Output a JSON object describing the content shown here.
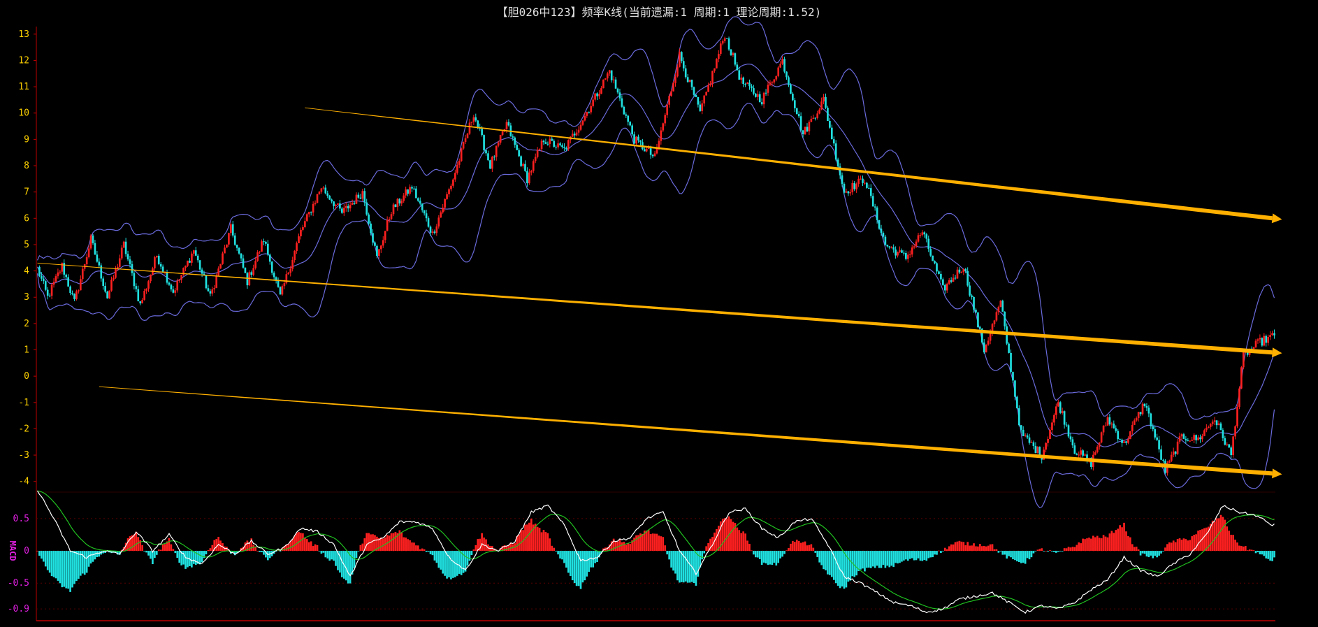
{
  "title": "【胆026中123】频率K线(当前遗漏:1 周期:1 理论周期:1.52)",
  "chart_data": [
    {
      "type": "candlestick",
      "panel": "main",
      "ylim": [
        -4.3,
        13.5
      ],
      "y_ticks": [
        "13",
        "12",
        "11",
        "10",
        "9",
        "8",
        "7",
        "6",
        "5",
        "4",
        "3",
        "2",
        "1",
        "0",
        "-1",
        "-2",
        "-3",
        "-4"
      ],
      "tick_color": "#ffd200",
      "up_color": "#ff2020",
      "down_color": "#20e0e0",
      "band_color": "#6a6adc",
      "close_anchors": [
        [
          0,
          4.1
        ],
        [
          5,
          3.0
        ],
        [
          12,
          4.2
        ],
        [
          18,
          2.8
        ],
        [
          26,
          5.2
        ],
        [
          34,
          3.0
        ],
        [
          42,
          5.0
        ],
        [
          50,
          2.7
        ],
        [
          58,
          4.6
        ],
        [
          66,
          3.2
        ],
        [
          76,
          4.8
        ],
        [
          84,
          3.0
        ],
        [
          94,
          5.6
        ],
        [
          102,
          3.6
        ],
        [
          110,
          5.2
        ],
        [
          118,
          3.0
        ],
        [
          128,
          5.5
        ],
        [
          138,
          7.2
        ],
        [
          148,
          6.2
        ],
        [
          158,
          7.0
        ],
        [
          165,
          4.5
        ],
        [
          172,
          6.3
        ],
        [
          182,
          7.2
        ],
        [
          192,
          5.4
        ],
        [
          202,
          7.5
        ],
        [
          212,
          10.0
        ],
        [
          220,
          8.0
        ],
        [
          228,
          9.6
        ],
        [
          238,
          7.5
        ],
        [
          246,
          9.0
        ],
        [
          256,
          8.6
        ],
        [
          266,
          9.9
        ],
        [
          278,
          11.6
        ],
        [
          290,
          9.0
        ],
        [
          300,
          8.3
        ],
        [
          312,
          12.2
        ],
        [
          322,
          10.0
        ],
        [
          334,
          13.0
        ],
        [
          342,
          11.2
        ],
        [
          352,
          10.5
        ],
        [
          362,
          12.0
        ],
        [
          372,
          9.2
        ],
        [
          382,
          10.5
        ],
        [
          392,
          7.0
        ],
        [
          402,
          7.5
        ],
        [
          412,
          5.0
        ],
        [
          422,
          4.5
        ],
        [
          430,
          5.5
        ],
        [
          440,
          3.3
        ],
        [
          450,
          4.2
        ],
        [
          460,
          1.0
        ],
        [
          468,
          2.8
        ],
        [
          478,
          -2.2
        ],
        [
          488,
          -3.0
        ],
        [
          496,
          -1.0
        ],
        [
          504,
          -2.8
        ],
        [
          512,
          -3.3
        ],
        [
          520,
          -1.6
        ],
        [
          528,
          -2.6
        ],
        [
          538,
          -1.0
        ],
        [
          548,
          -3.6
        ],
        [
          556,
          -2.3
        ],
        [
          564,
          -2.4
        ],
        [
          572,
          -1.6
        ],
        [
          580,
          -3.0
        ],
        [
          586,
          0.8
        ],
        [
          594,
          1.3
        ],
        [
          600,
          1.5
        ]
      ],
      "count": 602,
      "trend_lines": [
        {
          "from": [
            130,
            10.2
          ],
          "to": [
            600,
            6.0
          ]
        },
        {
          "from": [
            0,
            4.3
          ],
          "to": [
            600,
            0.9
          ]
        },
        {
          "from": [
            30,
            -0.4
          ],
          "to": [
            600,
            -3.7
          ]
        }
      ],
      "trend_color": "#ffb000"
    },
    {
      "type": "bar+line",
      "panel": "MACD",
      "label": "MACD",
      "label_color": "#e020e0",
      "ylim": [
        -1.05,
        0.9
      ],
      "y_ticks": [
        "0.5",
        "0",
        "-0.5",
        "-0.9"
      ],
      "dif_color": "#ffffff",
      "dea_color": "#20c020",
      "hist_up_color": "#ff2020",
      "hist_down_color": "#20e0e0",
      "dif_anchors": [
        [
          0,
          0.95
        ],
        [
          8,
          0.5
        ],
        [
          16,
          0.0
        ],
        [
          24,
          -0.1
        ],
        [
          32,
          0.0
        ],
        [
          40,
          -0.05
        ],
        [
          48,
          0.3
        ],
        [
          56,
          0.0
        ],
        [
          64,
          0.25
        ],
        [
          72,
          -0.1
        ],
        [
          80,
          -0.2
        ],
        [
          88,
          0.1
        ],
        [
          96,
          -0.05
        ],
        [
          104,
          0.15
        ],
        [
          112,
          -0.05
        ],
        [
          120,
          0.05
        ],
        [
          128,
          0.35
        ],
        [
          136,
          0.3
        ],
        [
          144,
          0.1
        ],
        [
          152,
          -0.4
        ],
        [
          160,
          0.1
        ],
        [
          168,
          0.2
        ],
        [
          176,
          0.45
        ],
        [
          184,
          0.45
        ],
        [
          192,
          0.35
        ],
        [
          200,
          -0.1
        ],
        [
          208,
          -0.3
        ],
        [
          216,
          0.1
        ],
        [
          224,
          0.0
        ],
        [
          232,
          0.15
        ],
        [
          240,
          0.6
        ],
        [
          248,
          0.7
        ],
        [
          256,
          0.4
        ],
        [
          264,
          -0.15
        ],
        [
          272,
          -0.1
        ],
        [
          280,
          0.15
        ],
        [
          288,
          0.2
        ],
        [
          296,
          0.5
        ],
        [
          304,
          0.6
        ],
        [
          312,
          0.0
        ],
        [
          320,
          -0.35
        ],
        [
          328,
          0.1
        ],
        [
          336,
          0.6
        ],
        [
          344,
          0.65
        ],
        [
          352,
          0.35
        ],
        [
          360,
          0.2
        ],
        [
          368,
          0.45
        ],
        [
          376,
          0.5
        ],
        [
          384,
          0.1
        ],
        [
          392,
          -0.4
        ],
        [
          400,
          -0.5
        ],
        [
          408,
          -0.65
        ],
        [
          416,
          -0.8
        ],
        [
          424,
          -0.85
        ],
        [
          432,
          -0.95
        ],
        [
          440,
          -0.9
        ],
        [
          448,
          -0.75
        ],
        [
          456,
          -0.7
        ],
        [
          464,
          -0.65
        ],
        [
          472,
          -0.8
        ],
        [
          480,
          -0.95
        ],
        [
          488,
          -0.85
        ],
        [
          496,
          -0.9
        ],
        [
          504,
          -0.8
        ],
        [
          512,
          -0.6
        ],
        [
          520,
          -0.45
        ],
        [
          528,
          -0.1
        ],
        [
          536,
          -0.3
        ],
        [
          544,
          -0.4
        ],
        [
          552,
          -0.2
        ],
        [
          560,
          -0.05
        ],
        [
          568,
          0.25
        ],
        [
          576,
          0.7
        ],
        [
          584,
          0.6
        ],
        [
          592,
          0.55
        ],
        [
          600,
          0.4
        ]
      ],
      "count": 602
    }
  ]
}
